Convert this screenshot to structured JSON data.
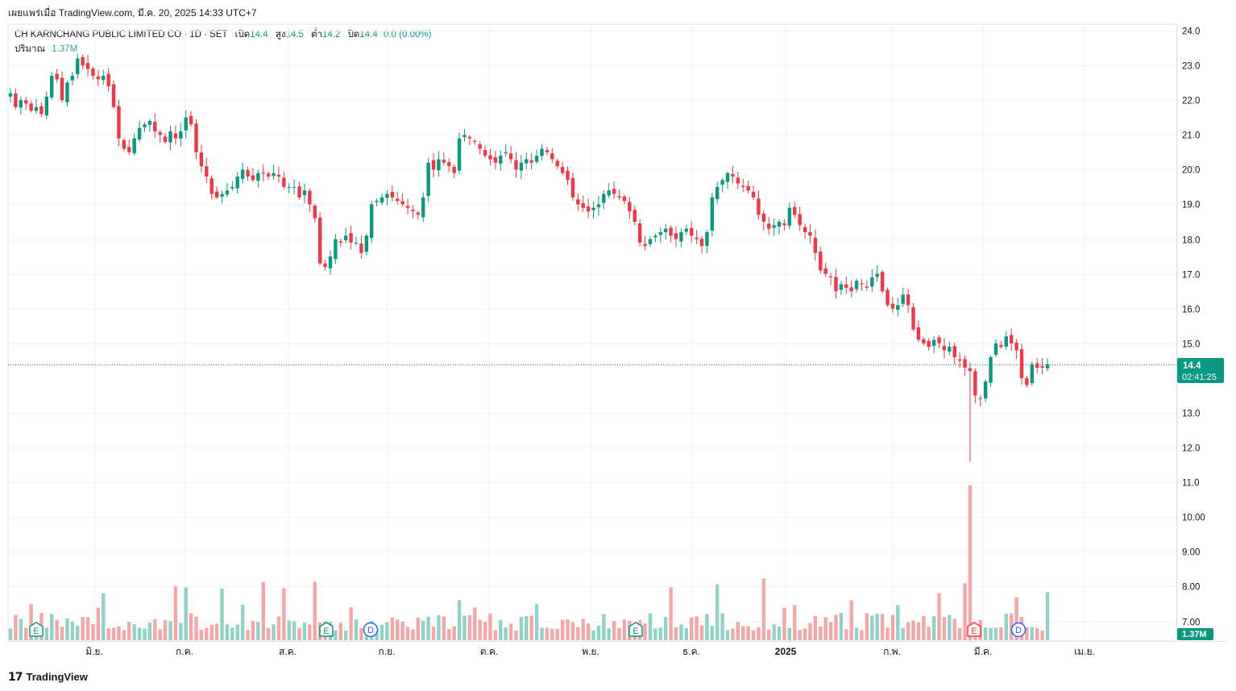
{
  "header": {
    "published": "เผยแพร่เมื่อ TradingView.com, มี.ค. 20, 2025 14:33 UTC+7"
  },
  "legend": {
    "symbol": "CH KARNCHANG PUBLIC LIMITED CO · 1D · SET",
    "open_label": "เปิด",
    "open": "14.4",
    "high_label": "สูง",
    "high": "14.5",
    "low_label": "ต่ำ",
    "low": "14.2",
    "close_label": "ปิด",
    "close": "14.4",
    "change": "0.0 (0.00%)",
    "volume_label": "ปริมาณ",
    "volume": "1.37M"
  },
  "price_badge": {
    "price": "14.4",
    "countdown": "02:41:25"
  },
  "volume_badge": "1.37M",
  "footer": {
    "brand": "TradingView"
  },
  "colors": {
    "up": "#089981",
    "down": "#f23645",
    "up_vol": "#8fd3c7",
    "down_vol": "#f5a6a6",
    "badge": "#089981"
  },
  "chart_data": {
    "type": "candlestick",
    "y_ticks": [
      "24.0",
      "23.0",
      "22.0",
      "21.0",
      "20.0",
      "19.0",
      "18.0",
      "17.0",
      "16.0",
      "15.0",
      "13.0",
      "12.0",
      "11.0",
      "10.00",
      "9.00",
      "8.00",
      "7.00"
    ],
    "ylim": [
      6.5,
      24.2
    ],
    "x_ticks": [
      "มิ.ย.",
      "ก.ค.",
      "ส.ค.",
      "ก.ย.",
      "ต.ค.",
      "พ.ย.",
      "ธ.ค.",
      "2025",
      "ก.พ.",
      "มี.ค.",
      "เม.ย."
    ],
    "event_markers": [
      {
        "label": "E",
        "type": "earnings",
        "month": "พ.ค."
      },
      {
        "label": "E",
        "type": "earnings",
        "month": "ส.ค."
      },
      {
        "label": "D",
        "type": "dividend",
        "month": "ส.ค."
      },
      {
        "label": "E",
        "type": "earnings",
        "month": "พ.ย."
      },
      {
        "label": "E",
        "type": "earnings",
        "month": "ก.พ."
      },
      {
        "label": "D",
        "type": "dividend",
        "month": "มี.ค."
      }
    ],
    "last_price": 14.4,
    "closes": [
      22.2,
      21.8,
      22.0,
      21.9,
      21.7,
      21.8,
      21.6,
      22.1,
      22.7,
      22.6,
      22.0,
      22.5,
      22.7,
      23.2,
      23.0,
      22.9,
      22.7,
      22.6,
      22.7,
      22.4,
      21.8,
      20.9,
      20.6,
      20.5,
      20.9,
      21.2,
      21.3,
      21.4,
      21.1,
      21.0,
      20.8,
      21.1,
      20.9,
      21.1,
      21.5,
      21.3,
      20.5,
      20.1,
      19.8,
      19.3,
      19.2,
      19.3,
      19.4,
      19.5,
      19.8,
      20.0,
      19.8,
      19.7,
      19.9,
      19.9,
      19.8,
      19.9,
      19.8,
      19.5,
      19.5,
      19.5,
      19.2,
      19.4,
      19.0,
      18.6,
      17.3,
      17.2,
      17.5,
      18.0,
      17.9,
      18.1,
      17.9,
      17.9,
      17.6,
      18.1,
      19.0,
      19.1,
      19.2,
      19.3,
      19.2,
      19.1,
      19.0,
      18.9,
      18.8,
      18.7,
      19.2,
      20.2,
      20.0,
      20.3,
      20.2,
      20.1,
      19.9,
      20.9,
      21.0,
      20.9,
      20.8,
      20.6,
      20.4,
      20.3,
      20.2,
      20.4,
      20.5,
      20.3,
      20.0,
      20.2,
      20.3,
      20.2,
      20.4,
      20.6,
      20.5,
      20.3,
      20.1,
      19.9,
      19.7,
      19.2,
      19.0,
      18.9,
      18.8,
      18.9,
      19.0,
      19.3,
      19.4,
      19.3,
      19.2,
      19.1,
      18.8,
      18.5,
      17.9,
      17.8,
      18.0,
      18.1,
      18.2,
      18.3,
      18.1,
      18.0,
      18.2,
      18.3,
      18.1,
      18.0,
      17.8,
      18.2,
      19.2,
      19.5,
      19.7,
      19.9,
      19.8,
      19.6,
      19.5,
      19.4,
      19.2,
      18.7,
      18.5,
      18.3,
      18.4,
      18.5,
      18.4,
      18.9,
      18.7,
      18.4,
      18.2,
      18.1,
      17.6,
      17.1,
      17.0,
      16.9,
      16.5,
      16.7,
      16.6,
      16.5,
      16.8,
      16.7,
      16.6,
      16.9,
      17.0,
      16.5,
      16.1,
      16.0,
      16.1,
      16.4,
      16.1,
      15.4,
      15.1,
      15.0,
      14.9,
      15.1,
      15.0,
      14.8,
      14.9,
      14.6,
      14.5,
      14.3,
      14.2,
      13.5,
      13.4,
      13.9,
      14.6,
      15.0,
      14.9,
      15.2,
      15.0,
      14.8,
      14.0,
      13.8,
      14.4,
      14.3,
      14.3,
      14.4
    ],
    "volume_labels_note": "volume bars share the same index as candles"
  }
}
